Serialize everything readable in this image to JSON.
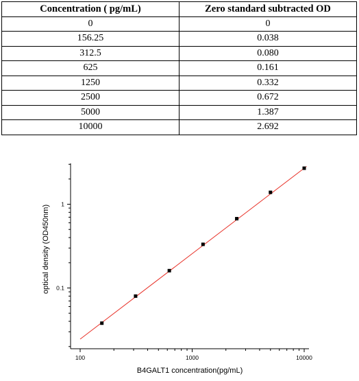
{
  "table": {
    "headers": [
      "Concentration ( pg/mL)",
      "Zero standard subtracted OD"
    ],
    "rows": [
      [
        "0",
        "0"
      ],
      [
        "156.25",
        "0.038"
      ],
      [
        "312.5",
        "0.080"
      ],
      [
        "625",
        "0.161"
      ],
      [
        "1250",
        "0.332"
      ],
      [
        "2500",
        "0.672"
      ],
      [
        "5000",
        "1.387"
      ],
      [
        "10000",
        "2.692"
      ]
    ]
  },
  "chart_data": {
    "type": "scatter",
    "xscale": "log",
    "yscale": "log",
    "xlim": [
      100,
      10000
    ],
    "ylim": [
      0.02,
      3
    ],
    "xlabel": "B4GALT1  concentration(pg/mL)",
    "ylabel": "optical density (OD450nm)",
    "xticks": [
      100,
      1000,
      10000
    ],
    "xtick_labels": [
      "100",
      "1000",
      "10000"
    ],
    "yticks": [
      0.1,
      1
    ],
    "ytick_labels": [
      "0.1",
      "1"
    ],
    "grid": false,
    "series": [
      {
        "x": [
          156.25,
          312.5,
          625,
          1250,
          2500,
          5000,
          10000
        ],
        "y": [
          0.038,
          0.08,
          0.161,
          0.332,
          0.672,
          1.387,
          2.692
        ],
        "marker_color": "#000000"
      }
    ],
    "fit_line": {
      "x": [
        100,
        10500
      ],
      "y": [
        0.0245,
        2.83
      ],
      "color": "#e8332a"
    }
  }
}
